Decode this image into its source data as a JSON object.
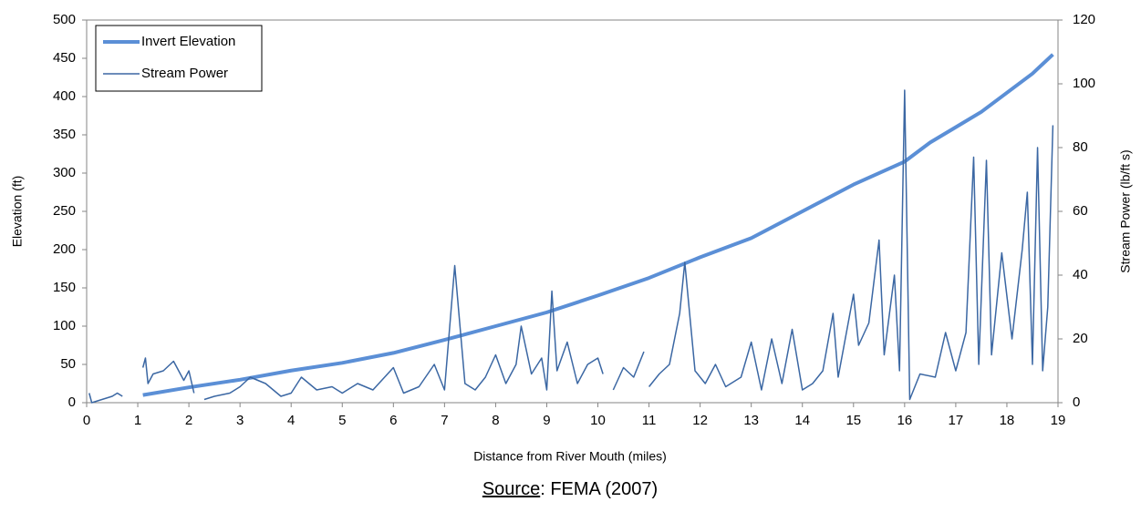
{
  "chart_data": {
    "type": "line",
    "x_label": "Distance from River Mouth (miles)",
    "y_label": "Elevation (ft)",
    "y2_label": "Stream Power (lb/ft s)",
    "source_label": "Source",
    "source_text": ": FEMA (2007)",
    "xlim": [
      0,
      19
    ],
    "xticks": [
      0,
      1,
      2,
      3,
      4,
      5,
      6,
      7,
      8,
      9,
      10,
      11,
      12,
      13,
      14,
      15,
      16,
      17,
      18,
      19
    ],
    "ylim": [
      0,
      500
    ],
    "yticks": [
      0,
      50,
      100,
      150,
      200,
      250,
      300,
      350,
      400,
      450,
      500
    ],
    "y2lim": [
      0,
      120
    ],
    "y2ticks": [
      0,
      20,
      40,
      60,
      80,
      100,
      120
    ],
    "legend": "top-left",
    "series": [
      {
        "name": "Invert Elevation",
        "color": "#5b8fd6",
        "x": [
          1.1,
          2,
          3,
          4,
          5,
          6,
          7,
          8,
          9,
          10,
          11,
          12,
          13,
          14,
          15,
          16,
          16.5,
          17,
          17.5,
          18,
          18.5,
          18.9
        ],
        "values": [
          10,
          20,
          30,
          42,
          52,
          65,
          82,
          100,
          118,
          140,
          163,
          190,
          215,
          250,
          285,
          315,
          340,
          360,
          380,
          405,
          430,
          455
        ]
      },
      {
        "name": "Stream Power",
        "color": "#3b67a3",
        "axis": "y2",
        "x": [
          0.05,
          0.1,
          0.3,
          0.5,
          0.6,
          0.7,
          0.9,
          1.1,
          1.15,
          1.2,
          1.3,
          1.5,
          1.7,
          1.9,
          2.0,
          2.1,
          2.2,
          2.3,
          2.5,
          2.8,
          3.0,
          3.2,
          3.5,
          3.8,
          4.0,
          4.2,
          4.5,
          4.8,
          5.0,
          5.3,
          5.6,
          6.0,
          6.2,
          6.5,
          6.8,
          7.0,
          7.2,
          7.4,
          7.6,
          7.8,
          8.0,
          8.2,
          8.4,
          8.5,
          8.7,
          8.9,
          9.0,
          9.1,
          9.2,
          9.4,
          9.6,
          9.8,
          10.0,
          10.1,
          10.2,
          10.3,
          10.5,
          10.7,
          10.9,
          10.95,
          11.0,
          11.2,
          11.4,
          11.6,
          11.7,
          11.9,
          12.1,
          12.3,
          12.5,
          12.8,
          13.0,
          13.2,
          13.4,
          13.6,
          13.8,
          14.0,
          14.2,
          14.4,
          14.6,
          14.7,
          15.0,
          15.1,
          15.3,
          15.5,
          15.6,
          15.8,
          15.9,
          16.0,
          16.1,
          16.3,
          16.6,
          16.8,
          17.0,
          17.2,
          17.35,
          17.45,
          17.6,
          17.7,
          17.9,
          18.1,
          18.3,
          18.4,
          18.5,
          18.6,
          18.7,
          18.8,
          18.9
        ],
        "values": [
          3,
          0,
          1,
          2,
          3,
          2,
          null,
          11,
          14,
          6,
          9,
          10,
          13,
          7,
          10,
          3,
          null,
          1,
          2,
          3,
          5,
          8,
          6,
          2,
          3,
          8,
          4,
          5,
          3,
          6,
          4,
          11,
          3,
          5,
          12,
          4,
          43,
          6,
          4,
          8,
          15,
          6,
          12,
          24,
          9,
          14,
          4,
          35,
          10,
          19,
          6,
          12,
          14,
          9,
          null,
          4,
          11,
          8,
          16,
          null,
          5,
          9,
          12,
          28,
          44,
          10,
          6,
          12,
          5,
          8,
          19,
          4,
          20,
          6,
          23,
          4,
          6,
          10,
          28,
          8,
          34,
          18,
          25,
          51,
          15,
          40,
          10,
          98,
          1,
          9,
          8,
          22,
          10,
          22,
          77,
          12,
          76,
          15,
          47,
          20,
          48,
          66,
          12,
          80,
          10,
          30,
          87
        ]
      }
    ]
  }
}
